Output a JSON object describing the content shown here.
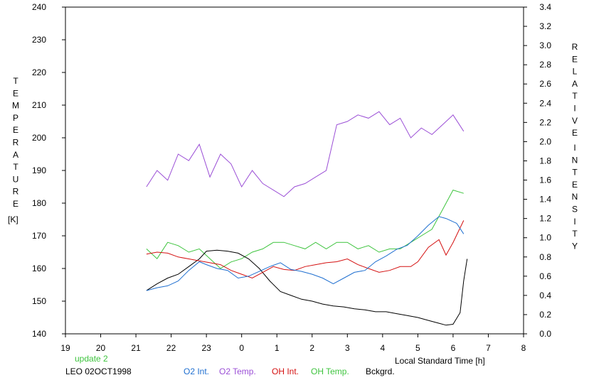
{
  "chart_data": {
    "type": "line",
    "title": "",
    "xlabel": "Local Standard Time [h]",
    "ylabel_left_letters": [
      "T",
      "E",
      "M",
      "P",
      "E",
      "R",
      "A",
      "T",
      "U",
      "R",
      "E"
    ],
    "ylabel_left_unit": "[K]",
    "ylabel_right_word1": [
      "R",
      "E",
      "L",
      "A",
      "T",
      "I",
      "V",
      "E"
    ],
    "ylabel_right_word2": [
      "I",
      "N",
      "T",
      "E",
      "N",
      "S",
      "I",
      "T",
      "Y"
    ],
    "x_tick_labels": [
      "19",
      "20",
      "21",
      "22",
      "23",
      "0",
      "1",
      "2",
      "3",
      "4",
      "5",
      "6",
      "7",
      "8"
    ],
    "y_left_ticks": [
      "140",
      "150",
      "160",
      "170",
      "180",
      "190",
      "200",
      "210",
      "220",
      "230",
      "240"
    ],
    "y_right_ticks": [
      "0.0",
      "0.2",
      "0.4",
      "0.6",
      "0.8",
      "1.0",
      "1.2",
      "1.4",
      "1.6",
      "1.8",
      "2.0",
      "2.2",
      "2.4",
      "2.6",
      "2.8",
      "3.0",
      "3.2",
      "3.4"
    ],
    "xlim": [
      19,
      32
    ],
    "ylim_left": [
      140,
      240
    ],
    "ylim_right": [
      0,
      3.4
    ],
    "grid": false,
    "note_update": "update 2",
    "station_date": "LEO 02OCT1998",
    "legend_position": "bottom",
    "series": [
      {
        "name": "O2 Int.",
        "axis": "right",
        "color": "#1f6fd0",
        "x": [
          21.3,
          21.6,
          21.9,
          22.2,
          22.5,
          22.8,
          23.0,
          23.3,
          23.6,
          23.9,
          24.2,
          24.5,
          24.8,
          25.1,
          25.4,
          25.7,
          26.0,
          26.3,
          26.6,
          26.9,
          27.2,
          27.5,
          27.8,
          28.1,
          28.4,
          28.7,
          29.0,
          29.3,
          29.6,
          29.8,
          30.1,
          30.3
        ],
        "y": [
          0.45,
          0.48,
          0.5,
          0.55,
          0.66,
          0.75,
          0.72,
          0.68,
          0.66,
          0.58,
          0.6,
          0.65,
          0.7,
          0.74,
          0.67,
          0.65,
          0.62,
          0.58,
          0.52,
          0.58,
          0.64,
          0.66,
          0.75,
          0.81,
          0.88,
          0.92,
          1.02,
          1.13,
          1.22,
          1.2,
          1.15,
          1.04
        ]
      },
      {
        "name": "O2 Temp.",
        "axis": "left",
        "color": "#9b4fd6",
        "x": [
          21.3,
          21.6,
          21.9,
          22.2,
          22.5,
          22.8,
          23.1,
          23.4,
          23.7,
          24.0,
          24.3,
          24.6,
          24.9,
          25.2,
          25.5,
          25.8,
          26.1,
          26.4,
          26.7,
          27.0,
          27.3,
          27.6,
          27.9,
          28.2,
          28.5,
          28.8,
          29.1,
          29.4,
          29.7,
          30.0,
          30.3
        ],
        "y": [
          185,
          190,
          187,
          195,
          193,
          198,
          188,
          195,
          192,
          185,
          190,
          186,
          184,
          182,
          185,
          186,
          188,
          190,
          204,
          205,
          207,
          206,
          208,
          204,
          206,
          200,
          203,
          201,
          204,
          207,
          202
        ]
      },
      {
        "name": "OH Int.",
        "axis": "right",
        "color": "#d41010",
        "x": [
          21.3,
          21.6,
          21.9,
          22.2,
          22.5,
          22.8,
          23.1,
          23.4,
          23.7,
          24.0,
          24.3,
          24.6,
          24.9,
          25.2,
          25.5,
          25.8,
          26.1,
          26.4,
          26.7,
          27.0,
          27.3,
          27.6,
          27.9,
          28.2,
          28.5,
          28.8,
          29.0,
          29.3,
          29.6,
          29.8,
          30.0,
          30.3
        ],
        "y": [
          0.83,
          0.85,
          0.84,
          0.8,
          0.78,
          0.76,
          0.74,
          0.72,
          0.66,
          0.62,
          0.58,
          0.64,
          0.7,
          0.67,
          0.66,
          0.7,
          0.72,
          0.74,
          0.75,
          0.78,
          0.72,
          0.68,
          0.64,
          0.66,
          0.7,
          0.7,
          0.75,
          0.9,
          0.98,
          0.82,
          0.95,
          1.18
        ]
      },
      {
        "name": "OH Temp.",
        "axis": "left",
        "color": "#3ec43e",
        "x": [
          21.3,
          21.6,
          21.9,
          22.2,
          22.5,
          22.8,
          23.1,
          23.4,
          23.7,
          24.0,
          24.3,
          24.6,
          24.9,
          25.2,
          25.5,
          25.8,
          26.1,
          26.4,
          26.7,
          27.0,
          27.3,
          27.6,
          27.9,
          28.2,
          28.5,
          28.8,
          29.1,
          29.4,
          29.7,
          30.0,
          30.3
        ],
        "y": [
          166,
          163,
          168,
          167,
          165,
          166,
          163,
          160,
          162,
          163,
          165,
          166,
          168,
          168,
          167,
          166,
          168,
          166,
          168,
          168,
          166,
          167,
          165,
          166,
          166,
          168,
          170,
          172,
          178,
          184,
          183
        ]
      },
      {
        "name": "Bckgrd.",
        "axis": "right",
        "color": "#000000",
        "x": [
          21.3,
          21.6,
          21.9,
          22.2,
          22.5,
          22.8,
          23.0,
          23.3,
          23.6,
          23.9,
          24.2,
          24.5,
          24.8,
          25.1,
          25.4,
          25.7,
          26.0,
          26.3,
          26.6,
          26.9,
          27.2,
          27.5,
          27.8,
          28.1,
          28.4,
          28.7,
          29.0,
          29.3,
          29.6,
          29.8,
          30.0,
          30.2,
          30.3,
          30.4
        ],
        "y": [
          0.45,
          0.52,
          0.58,
          0.62,
          0.7,
          0.78,
          0.86,
          0.87,
          0.86,
          0.84,
          0.78,
          0.68,
          0.55,
          0.44,
          0.4,
          0.36,
          0.34,
          0.31,
          0.29,
          0.28,
          0.26,
          0.25,
          0.23,
          0.23,
          0.21,
          0.19,
          0.17,
          0.14,
          0.11,
          0.09,
          0.1,
          0.22,
          0.55,
          0.78
        ]
      }
    ]
  }
}
